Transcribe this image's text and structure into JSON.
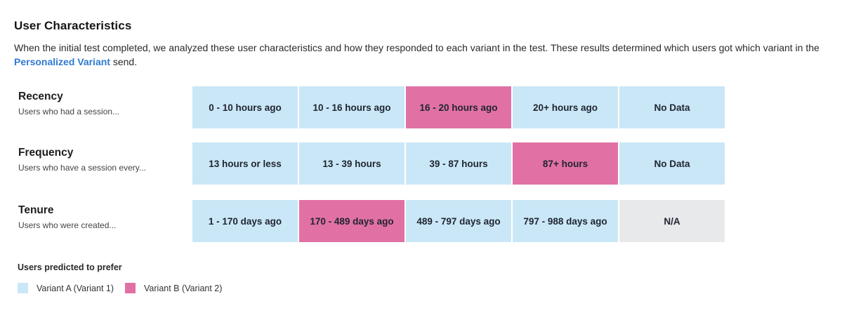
{
  "header": {
    "title": "User Characteristics",
    "description_before": "When the initial test completed, we analyzed these user characteristics and how they responded to each variant in the test. These results determined which users got which variant in the ",
    "description_link": "Personalized Variant",
    "description_after": " send."
  },
  "colors": {
    "variant_a": "#cae7f7",
    "variant_b": "#e171a4",
    "not_applicable": "#e8e9ea",
    "link": "#2f7ad0"
  },
  "rows": [
    {
      "name": "Recency",
      "subtitle": "Users who had a session...",
      "cells": [
        {
          "label": "0 - 10 hours ago",
          "variant": "a"
        },
        {
          "label": "10 - 16 hours ago",
          "variant": "a"
        },
        {
          "label": "16 - 20 hours ago",
          "variant": "b"
        },
        {
          "label": "20+ hours ago",
          "variant": "a"
        },
        {
          "label": "No Data",
          "variant": "a"
        }
      ]
    },
    {
      "name": "Frequency",
      "subtitle": "Users who have a session every...",
      "cells": [
        {
          "label": "13 hours or less",
          "variant": "a"
        },
        {
          "label": "13 - 39 hours",
          "variant": "a"
        },
        {
          "label": "39 - 87 hours",
          "variant": "a"
        },
        {
          "label": "87+ hours",
          "variant": "b"
        },
        {
          "label": "No Data",
          "variant": "a"
        }
      ]
    },
    {
      "name": "Tenure",
      "subtitle": "Users who were created...",
      "cells": [
        {
          "label": "1 - 170 days ago",
          "variant": "a"
        },
        {
          "label": "170 - 489 days ago",
          "variant": "b"
        },
        {
          "label": "489 - 797 days ago",
          "variant": "a"
        },
        {
          "label": "797 - 988 days ago",
          "variant": "a"
        },
        {
          "label": "N/A",
          "variant": "na"
        }
      ]
    }
  ],
  "legend": {
    "title": "Users predicted to prefer",
    "variant_a_label": "Variant A (Variant 1)",
    "variant_b_label": "Variant B (Variant 2)"
  }
}
